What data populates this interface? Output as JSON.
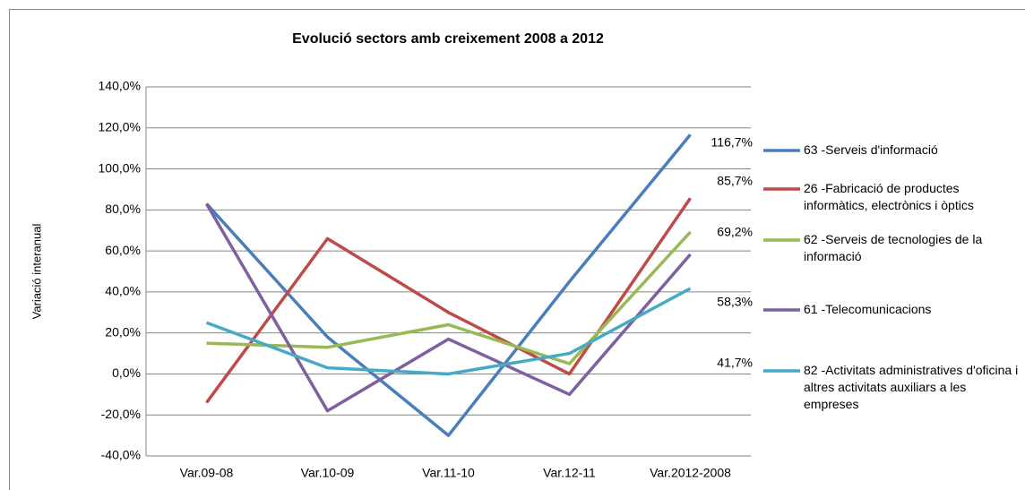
{
  "chart_data": {
    "type": "line",
    "title": "Evolució sectors amb creixement 2008 a 2012",
    "y_label": "Variació interanual",
    "categories": [
      "Var.09-08",
      "Var.10-09",
      "Var.11-10",
      "Var.12-11",
      "Var.2012-2008"
    ],
    "series": [
      {
        "name": "63 -Serveis d'informació",
        "color": "#4a7ebb",
        "values": [
          83,
          18,
          -30,
          45,
          116.7
        ],
        "value_labels": [
          null,
          null,
          null,
          null,
          "116,7%"
        ]
      },
      {
        "name": "26 -Fabricació de productes informàtics, electrònics i òptics",
        "color": "#be4b48",
        "values": [
          -14,
          66,
          30,
          0,
          85.7
        ],
        "value_labels": [
          null,
          null,
          null,
          null,
          "85,7%"
        ]
      },
      {
        "name": "62 -Serveis de tecnologies de la informació",
        "color": "#98b954",
        "values": [
          15,
          13,
          24,
          5,
          69.2
        ],
        "value_labels": [
          null,
          null,
          null,
          null,
          "69,2%"
        ]
      },
      {
        "name": "61 -Telecomunicacions",
        "color": "#7d60a0",
        "values": [
          83,
          -18,
          17,
          -10,
          58.3
        ],
        "value_labels": [
          null,
          null,
          null,
          null,
          "58,3%"
        ]
      },
      {
        "name": "82 -Activitats administratives d'oficina i altres activitats auxiliars a les empreses",
        "color": "#46aac5",
        "values": [
          25,
          3,
          0,
          10,
          41.7
        ],
        "value_labels": [
          null,
          null,
          null,
          null,
          "41,7%"
        ]
      }
    ],
    "ylim": [
      -40,
      140
    ],
    "yticks": [
      {
        "value": -40,
        "label": "-40,0%"
      },
      {
        "value": -20,
        "label": "-20,0%"
      },
      {
        "value": 0,
        "label": "0,0%"
      },
      {
        "value": 20,
        "label": "20,0%"
      },
      {
        "value": 40,
        "label": "40,0%"
      },
      {
        "value": 60,
        "label": "60,0%"
      },
      {
        "value": 80,
        "label": "80,0%"
      },
      {
        "value": 100,
        "label": "100,0%"
      },
      {
        "value": 120,
        "label": "120,0%"
      },
      {
        "value": 140,
        "label": "140,0%"
      }
    ],
    "grid": true,
    "legend": "right"
  }
}
